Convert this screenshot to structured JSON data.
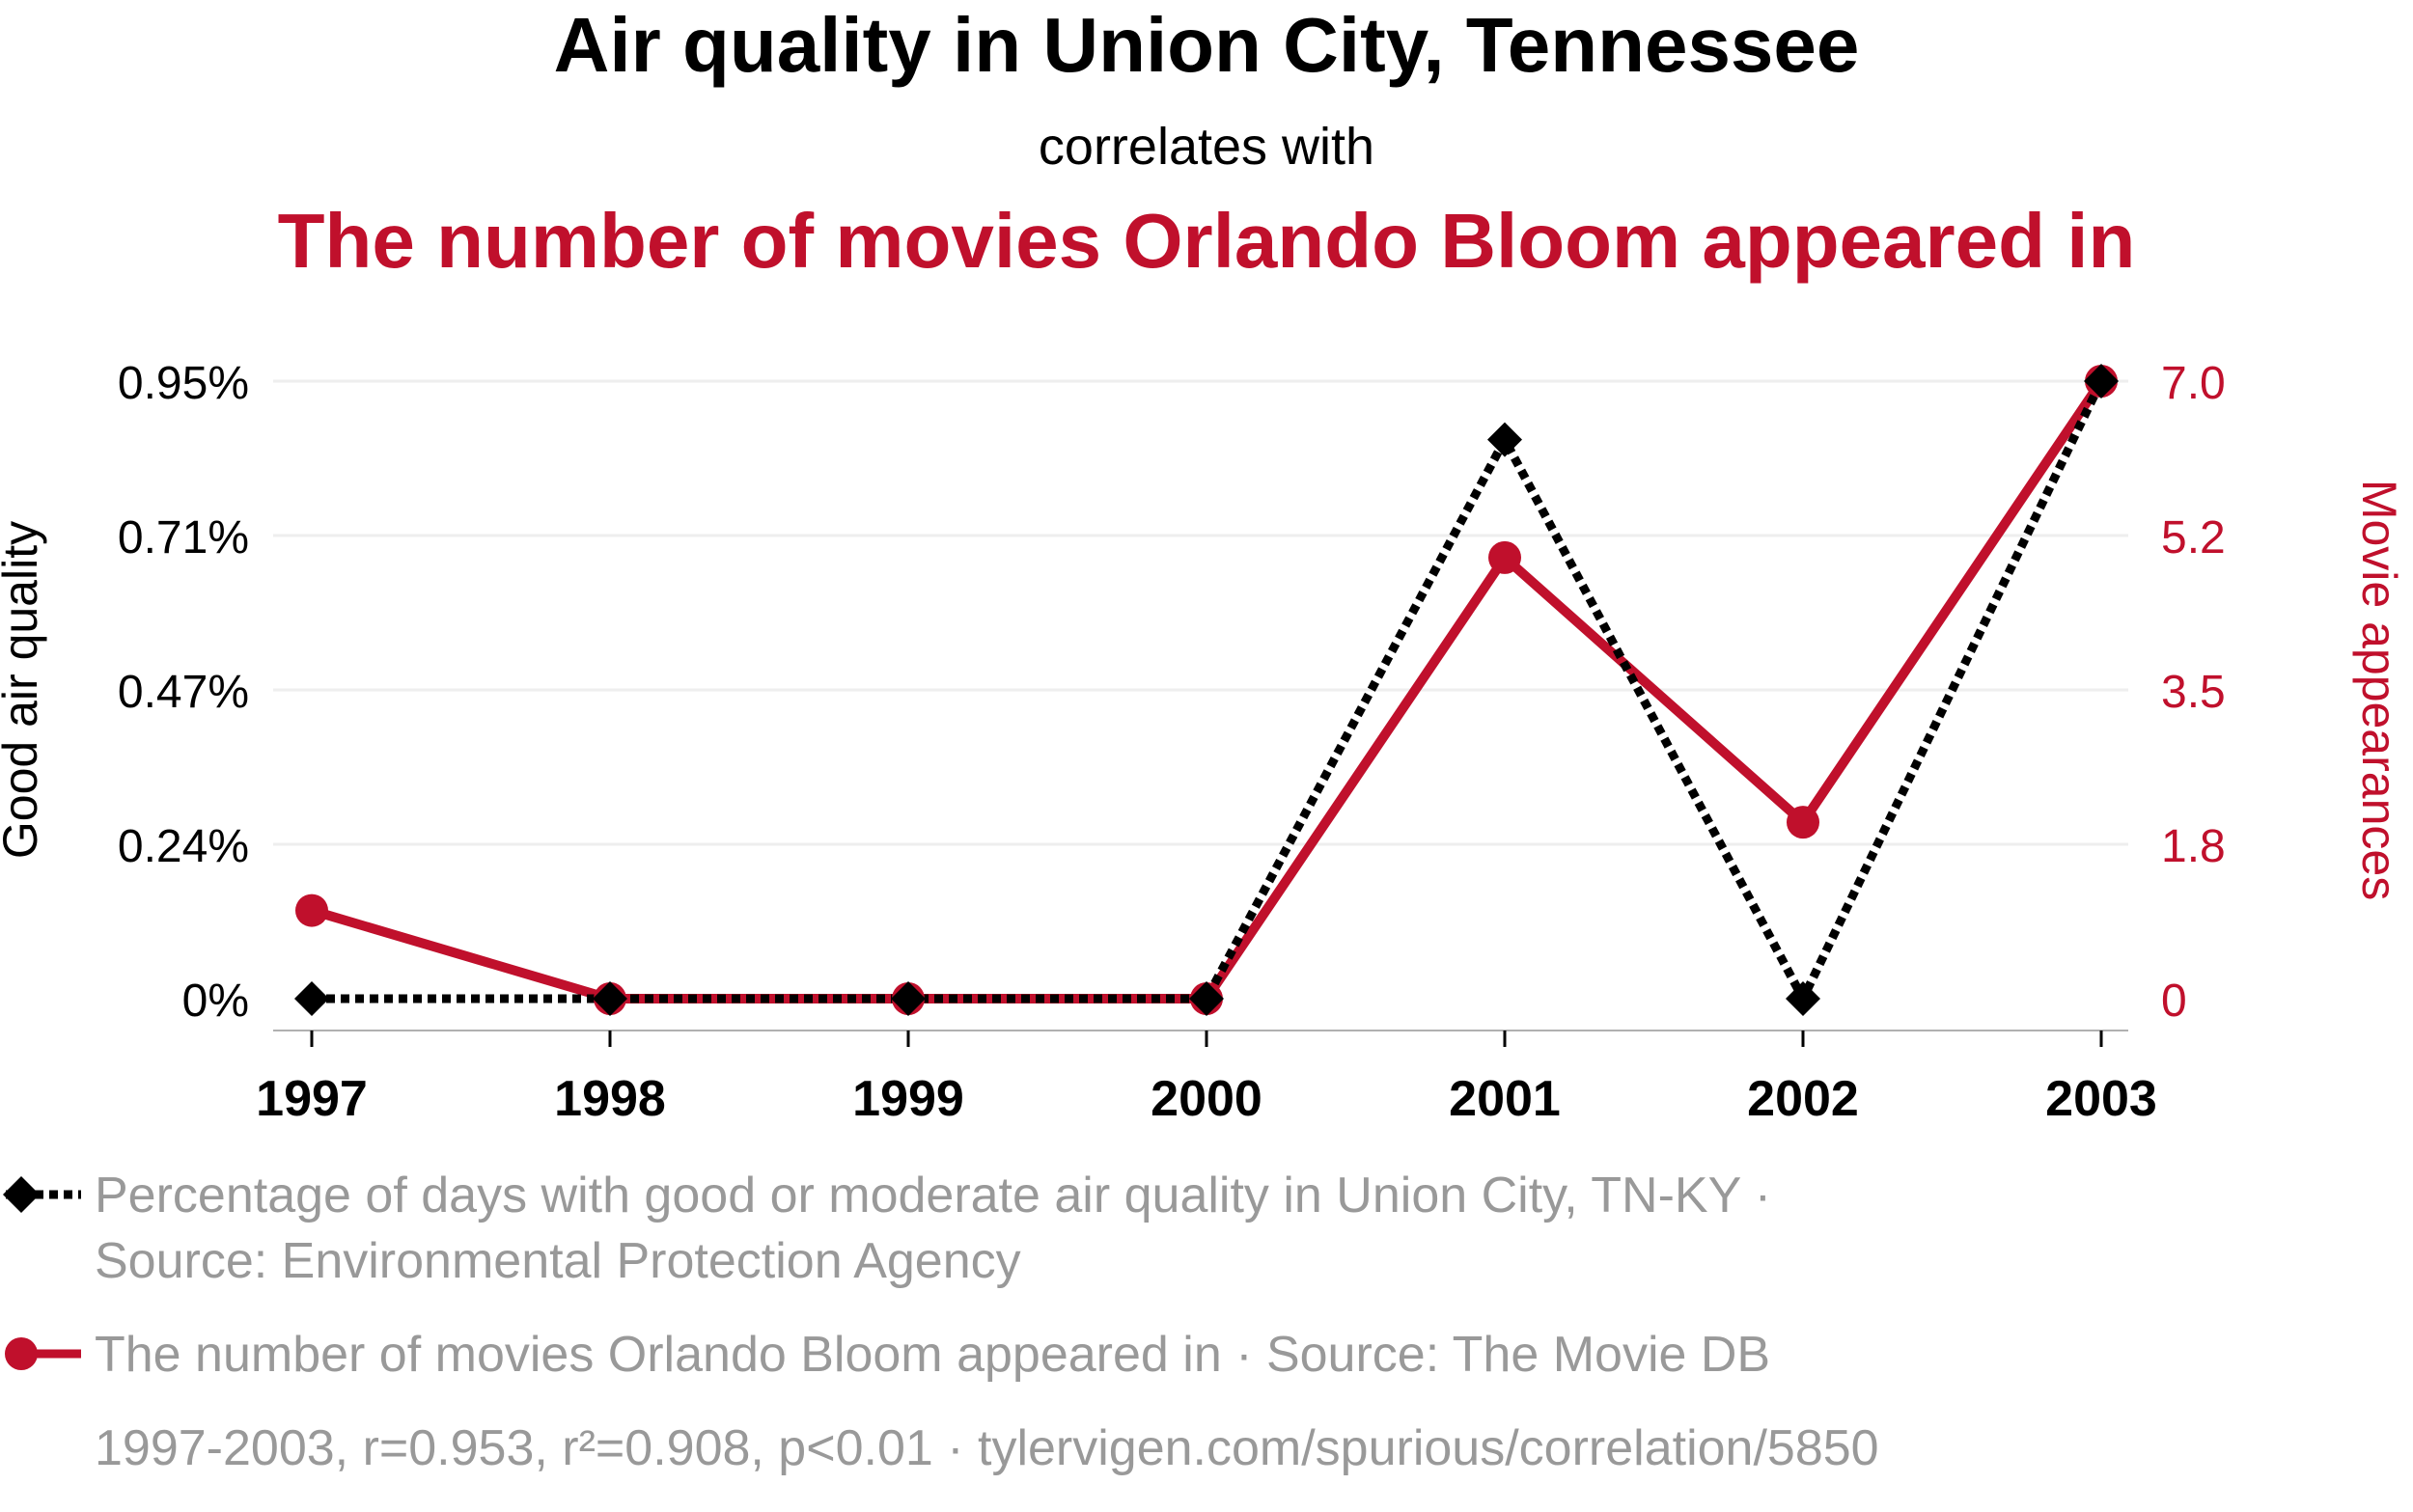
{
  "header": {
    "title": "Air quality in Union City, Tennessee",
    "subtitle": "correlates with",
    "title2": "The number of movies Orlando Bloom appeared in"
  },
  "colors": {
    "series1": "#000000",
    "series2": "#c0102c",
    "grid": "#eeeeee",
    "muted": "#999999"
  },
  "chart_data": {
    "type": "line",
    "x": [
      "1997",
      "1998",
      "1999",
      "2000",
      "2001",
      "2002",
      "2003"
    ],
    "series": [
      {
        "name": "Percentage of days with good or moderate air quality in Union City, TN-KY",
        "axis": "left",
        "style": "dotted",
        "marker": "diamond",
        "values": [
          0,
          0,
          0,
          0,
          0.86,
          0,
          0.95
        ]
      },
      {
        "name": "The number of movies Orlando Bloom appeared in",
        "axis": "right",
        "style": "solid",
        "marker": "circle",
        "values": [
          1,
          0,
          0,
          0,
          5,
          2,
          7
        ]
      }
    ],
    "y_left": {
      "label": "Good air quality",
      "range": [
        0,
        0.95
      ],
      "ticks": [
        0,
        0.2375,
        0.475,
        0.7125,
        0.95
      ],
      "tick_labels": [
        "0%",
        "0.24%",
        "0.47%",
        "0.71%",
        "0.95%"
      ]
    },
    "y_right": {
      "label": "Movie appearances",
      "range": [
        0,
        7
      ],
      "ticks": [
        0,
        1.75,
        3.5,
        5.25,
        7
      ],
      "tick_labels": [
        "0",
        "1.8",
        "3.5",
        "5.2",
        "7.0"
      ]
    },
    "grid": true
  },
  "legend": {
    "series1_line1": "Percentage of days with good or moderate air quality in Union City, TN-KY ·",
    "series1_line2": "Source: Environmental Protection Agency",
    "series2_line1": "The number of movies Orlando Bloom appeared in · Source: The Movie DB"
  },
  "footer": {
    "stats": "1997-2003, r=0.953, r²=0.908, p<0.01 · tylervigen.com/spurious/correlation/5850"
  }
}
